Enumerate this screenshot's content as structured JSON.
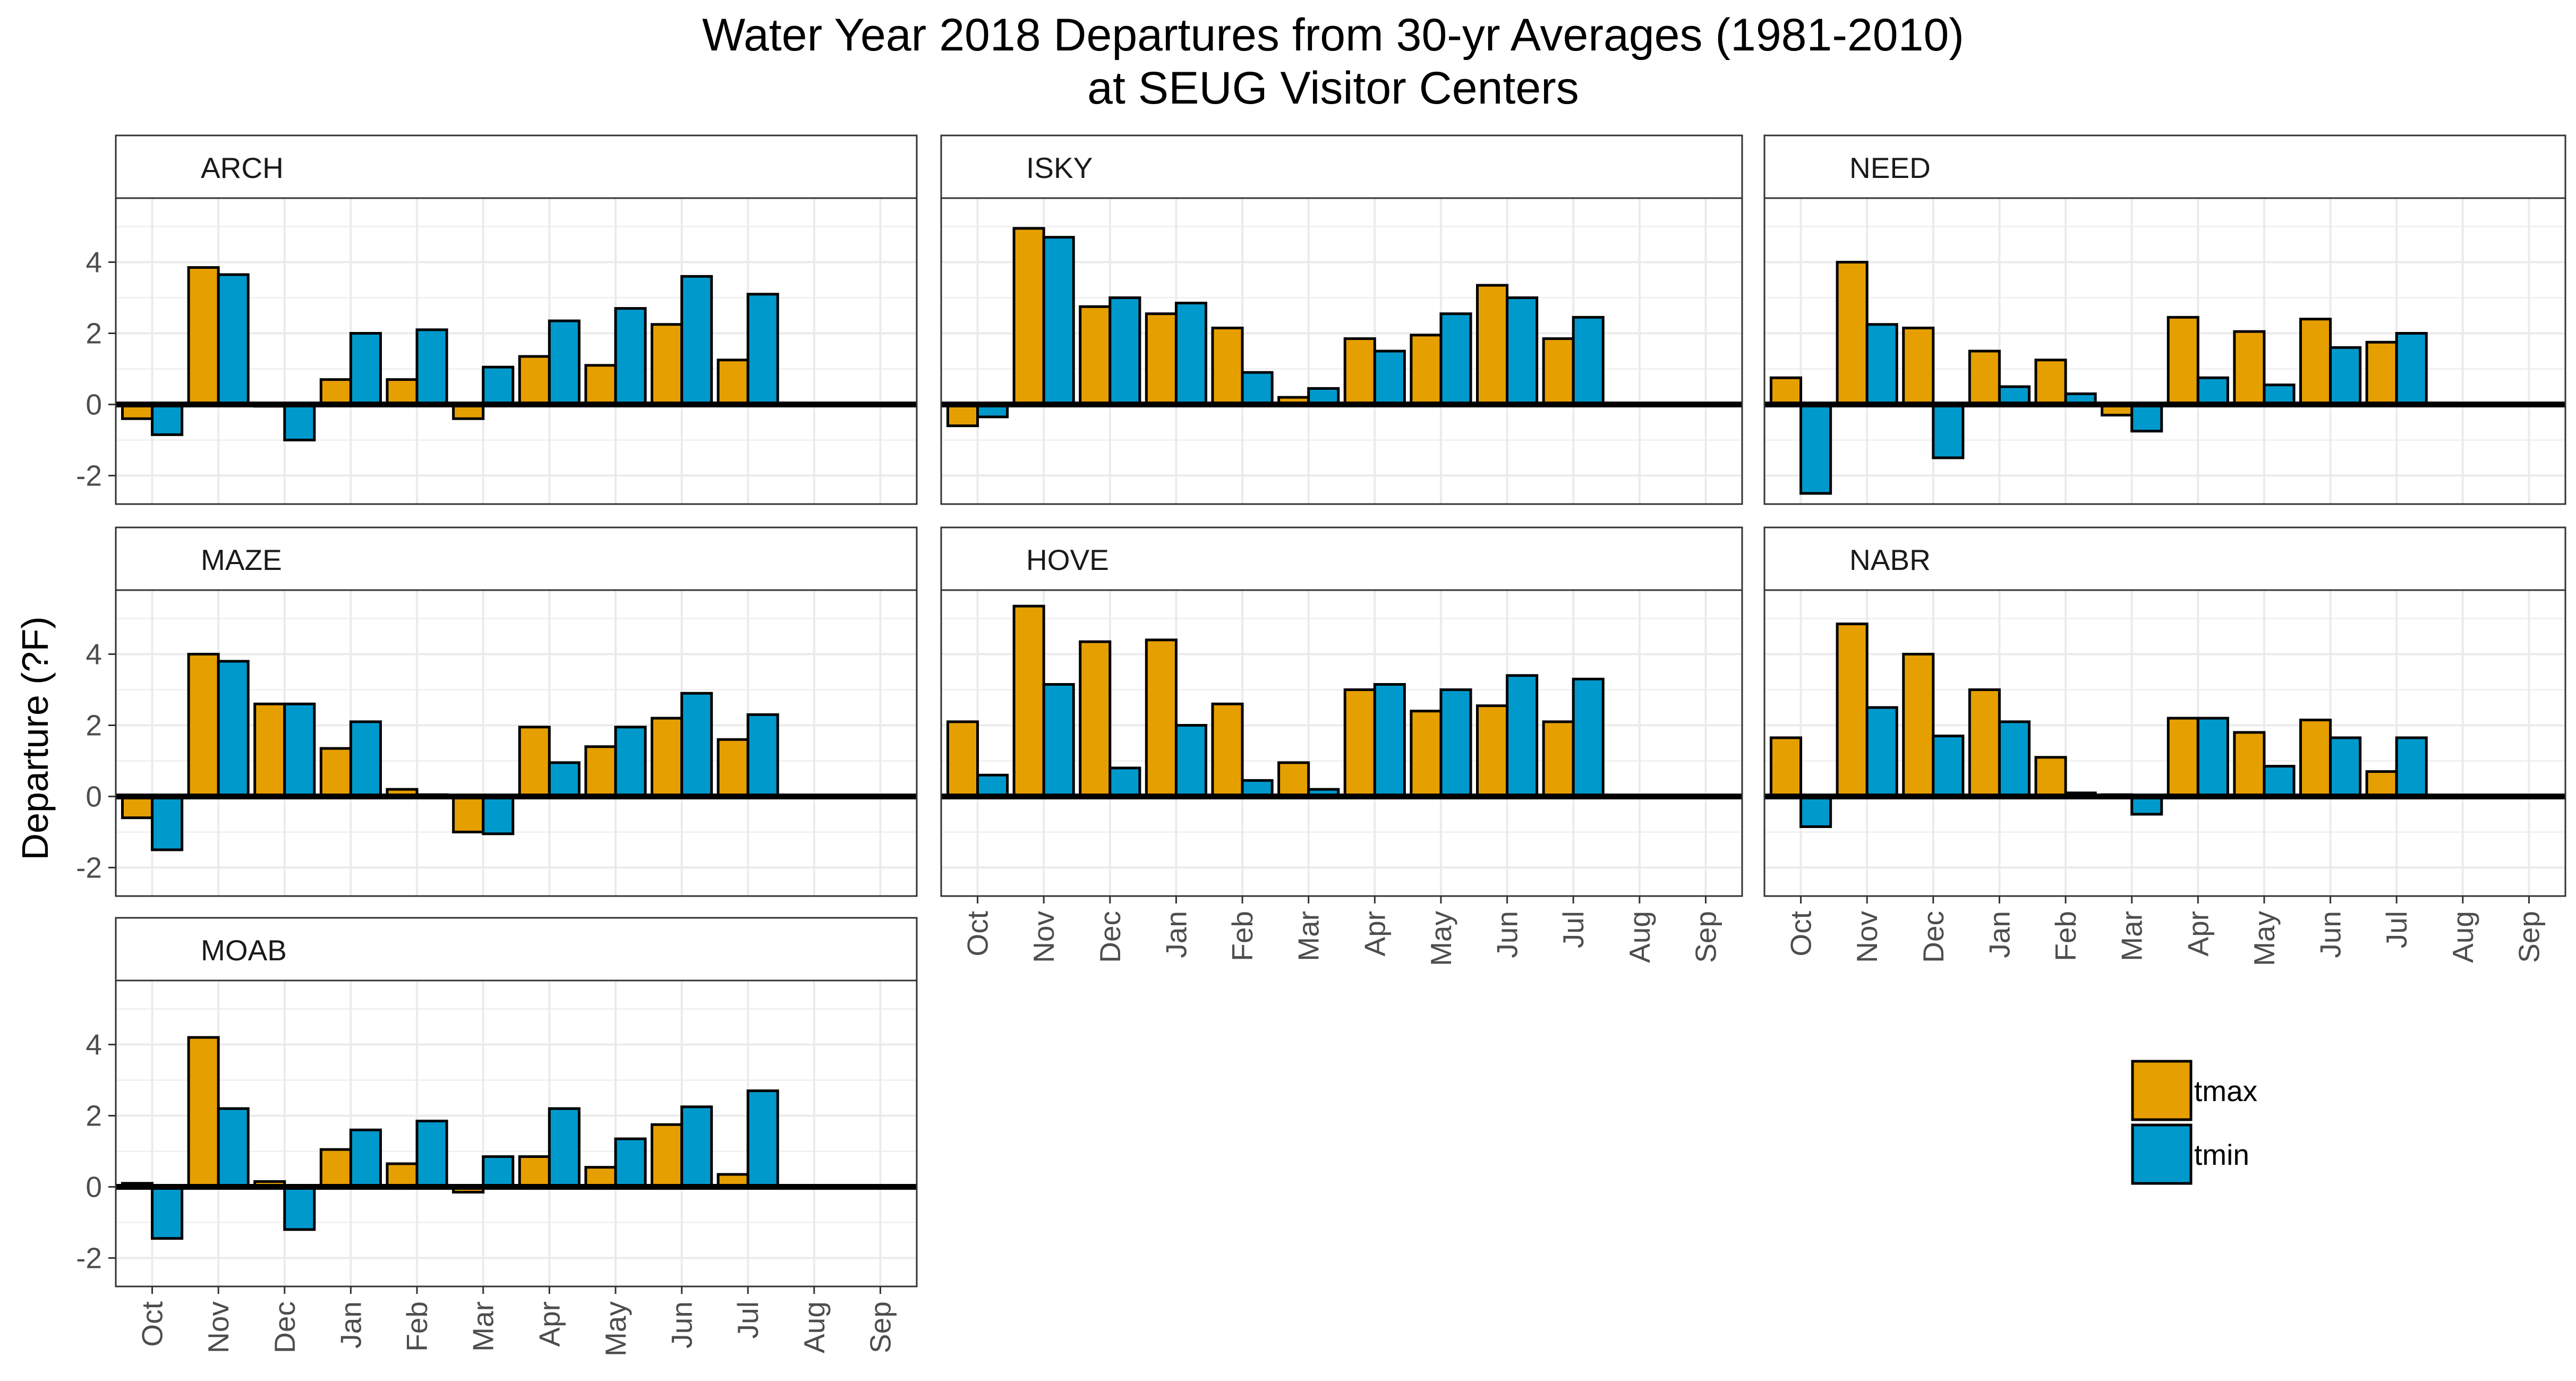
{
  "title_line1": "Water Year 2018 Departures from 30-yr Averages (1981-2010)",
  "title_line2": "at SEUG Visitor Centers",
  "colors": {
    "tmax": "#E69F00",
    "tmin": "#0099CC",
    "zero_line": "#000000",
    "grid": "#ebebeb"
  },
  "chart_data": {
    "type": "bar",
    "ylabel": "Departure (?F)",
    "xlabel": "",
    "categories": [
      "Oct",
      "Nov",
      "Dec",
      "Jan",
      "Feb",
      "Mar",
      "Apr",
      "May",
      "Jun",
      "Jul",
      "Aug",
      "Sep"
    ],
    "ylim": [
      -2.8,
      5.8
    ],
    "yticks": [
      -2,
      0,
      2,
      4
    ],
    "yticks_labels": [
      "-2",
      "0",
      "2",
      "4"
    ],
    "grid": true,
    "legend": {
      "placement": "bottom-right",
      "entries": [
        "tmax",
        "tmin"
      ]
    },
    "panels": [
      {
        "name": "ARCH",
        "series": [
          {
            "name": "tmax",
            "values": [
              -0.4,
              3.85,
              -0.05,
              0.7,
              0.7,
              -0.4,
              1.35,
              1.1,
              2.25,
              1.25,
              null,
              null
            ]
          },
          {
            "name": "tmin",
            "values": [
              -0.85,
              3.65,
              -1.0,
              2.0,
              2.1,
              1.05,
              2.35,
              2.7,
              3.6,
              3.1,
              null,
              null
            ]
          }
        ]
      },
      {
        "name": "ISKY",
        "series": [
          {
            "name": "tmax",
            "values": [
              -0.6,
              4.95,
              2.75,
              2.55,
              2.15,
              0.2,
              1.85,
              1.95,
              3.35,
              1.85,
              null,
              null
            ]
          },
          {
            "name": "tmin",
            "values": [
              -0.35,
              4.7,
              3.0,
              2.85,
              0.9,
              0.45,
              1.5,
              2.55,
              3.0,
              2.45,
              null,
              null
            ]
          }
        ]
      },
      {
        "name": "NEED",
        "series": [
          {
            "name": "tmax",
            "values": [
              0.75,
              4.0,
              2.15,
              1.5,
              1.25,
              -0.3,
              2.45,
              2.05,
              2.4,
              1.75,
              null,
              null
            ]
          },
          {
            "name": "tmin",
            "values": [
              -2.5,
              2.25,
              -1.5,
              0.5,
              0.3,
              -0.75,
              0.75,
              0.55,
              1.6,
              2.0,
              null,
              null
            ]
          }
        ]
      },
      {
        "name": "MAZE",
        "series": [
          {
            "name": "tmax",
            "values": [
              -0.6,
              4.0,
              2.6,
              1.35,
              0.2,
              -1.0,
              1.95,
              1.4,
              2.2,
              1.6,
              null,
              null
            ]
          },
          {
            "name": "tmin",
            "values": [
              -1.5,
              3.8,
              2.6,
              2.1,
              0.05,
              -1.05,
              0.95,
              1.95,
              2.9,
              2.3,
              null,
              null
            ]
          }
        ]
      },
      {
        "name": "HOVE",
        "series": [
          {
            "name": "tmax",
            "values": [
              2.1,
              5.35,
              4.35,
              4.4,
              2.6,
              0.95,
              3.0,
              2.4,
              2.55,
              2.1,
              null,
              null
            ]
          },
          {
            "name": "tmin",
            "values": [
              0.6,
              3.15,
              0.8,
              2.0,
              0.45,
              0.2,
              3.15,
              3.0,
              3.4,
              3.3,
              null,
              null
            ]
          }
        ]
      },
      {
        "name": "NABR",
        "series": [
          {
            "name": "tmax",
            "values": [
              1.65,
              4.85,
              4.0,
              3.0,
              1.1,
              0.05,
              2.2,
              1.8,
              2.15,
              0.7,
              null,
              null
            ]
          },
          {
            "name": "tmin",
            "values": [
              -0.85,
              2.5,
              1.7,
              2.1,
              0.1,
              -0.5,
              2.2,
              0.85,
              1.65,
              1.65,
              null,
              null
            ]
          }
        ]
      },
      {
        "name": "MOAB",
        "series": [
          {
            "name": "tmax",
            "values": [
              0.1,
              4.2,
              0.15,
              1.05,
              0.65,
              -0.15,
              0.85,
              0.55,
              1.75,
              0.35,
              null,
              null
            ]
          },
          {
            "name": "tmin",
            "values": [
              -1.45,
              2.2,
              -1.2,
              1.6,
              1.85,
              0.85,
              2.2,
              1.35,
              2.25,
              2.7,
              null,
              null
            ]
          }
        ]
      }
    ]
  }
}
